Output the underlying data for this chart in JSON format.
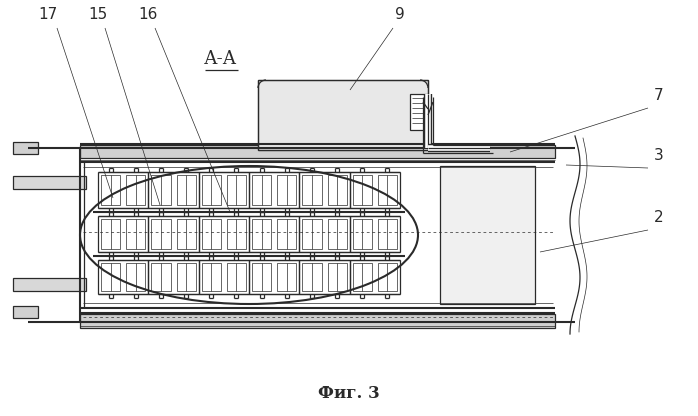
{
  "bg_color": "#ffffff",
  "line_color": "#2a2a2a",
  "lw_thin": 0.5,
  "lw_med": 0.9,
  "lw_thick": 1.5,
  "lw_vthick": 2.0,
  "fig_caption": "Фиг. 3",
  "aa_label": "А-А",
  "num_labels": [
    "17",
    "15",
    "16",
    "9",
    "7",
    "3",
    "2"
  ]
}
